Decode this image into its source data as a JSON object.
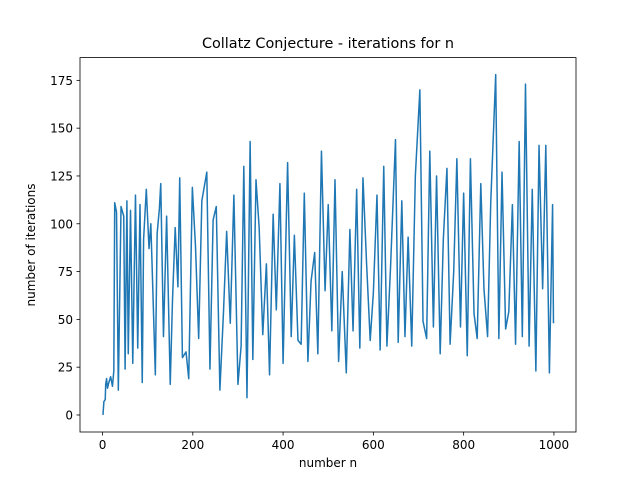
{
  "chart_data": {
    "type": "line",
    "title": "Collatz Conjecture - iterations for n",
    "x_label": "number n",
    "y_label": "number of iterations",
    "x": [
      1,
      3,
      6,
      7,
      9,
      11,
      14,
      18,
      22,
      25,
      27,
      31,
      35,
      41,
      47,
      50,
      54,
      57,
      62,
      67,
      73,
      78,
      83,
      88,
      91,
      97,
      103,
      107,
      111,
      117,
      121,
      126,
      129,
      135,
      142,
      150,
      155,
      161,
      167,
      171,
      177,
      185,
      191,
      199,
      206,
      213,
      220,
      231,
      238,
      245,
      252,
      260,
      268,
      275,
      283,
      291,
      300,
      307,
      313,
      320,
      327,
      333,
      340,
      347,
      355,
      363,
      370,
      378,
      385,
      393,
      400,
      410,
      418,
      425,
      433,
      440,
      447,
      455,
      462,
      470,
      477,
      485,
      493,
      500,
      508,
      515,
      523,
      531,
      540,
      548,
      555,
      563,
      570,
      577,
      585,
      593,
      600,
      608,
      615,
      623,
      630,
      638,
      649,
      655,
      663,
      670,
      677,
      685,
      693,
      703,
      710,
      718,
      725,
      733,
      740,
      748,
      755,
      763,
      770,
      778,
      785,
      793,
      800,
      808,
      815,
      823,
      830,
      838,
      845,
      853,
      860,
      871,
      878,
      885,
      893,
      900,
      908,
      915,
      923,
      930,
      937,
      945,
      952,
      960,
      967,
      975,
      982,
      990,
      997,
      999
    ],
    "series": [
      {
        "name": "iterations",
        "color": "#1f77b4",
        "values": [
          0,
          7,
          8,
          16,
          19,
          14,
          17,
          20,
          15,
          23,
          111,
          106,
          13,
          109,
          104,
          24,
          112,
          32,
          107,
          27,
          115,
          35,
          110,
          17,
          92,
          118,
          87,
          100,
          69,
          21,
          95,
          108,
          121,
          41,
          104,
          16,
          60,
          98,
          67,
          124,
          30,
          33,
          19,
          119,
          88,
          40,
          112,
          127,
          24,
          102,
          109,
          13,
          54,
          96,
          48,
          115,
          16,
          36,
          130,
          9,
          143,
          29,
          123,
          98,
          42,
          79,
          21,
          105,
          55,
          121,
          27,
          132,
          41,
          94,
          39,
          37,
          116,
          28,
          70,
          85,
          32,
          138,
          65,
          110,
          44,
          123,
          28,
          75,
          22,
          97,
          44,
          118,
          35,
          124,
          79,
          39,
          64,
          115,
          34,
          130,
          36,
          77,
          144,
          38,
          112,
          41,
          93,
          36,
          125,
          170,
          49,
          40,
          138,
          46,
          125,
          32,
          92,
          129,
          37,
          75,
          134,
          46,
          116,
          31,
          134,
          53,
          40,
          121,
          66,
          41,
          111,
          178,
          40,
          127,
          45,
          54,
          110,
          37,
          143,
          41,
          173,
          36,
          118,
          23,
          141,
          66,
          141,
          22,
          110,
          48
        ]
      }
    ],
    "xlim": [
      -49.9,
      1048.9
    ],
    "ylim": [
      -8.9,
      186.9
    ],
    "xticks": [
      0,
      200,
      400,
      600,
      800,
      1000
    ],
    "yticks": [
      0,
      25,
      50,
      75,
      100,
      125,
      150,
      175
    ]
  }
}
